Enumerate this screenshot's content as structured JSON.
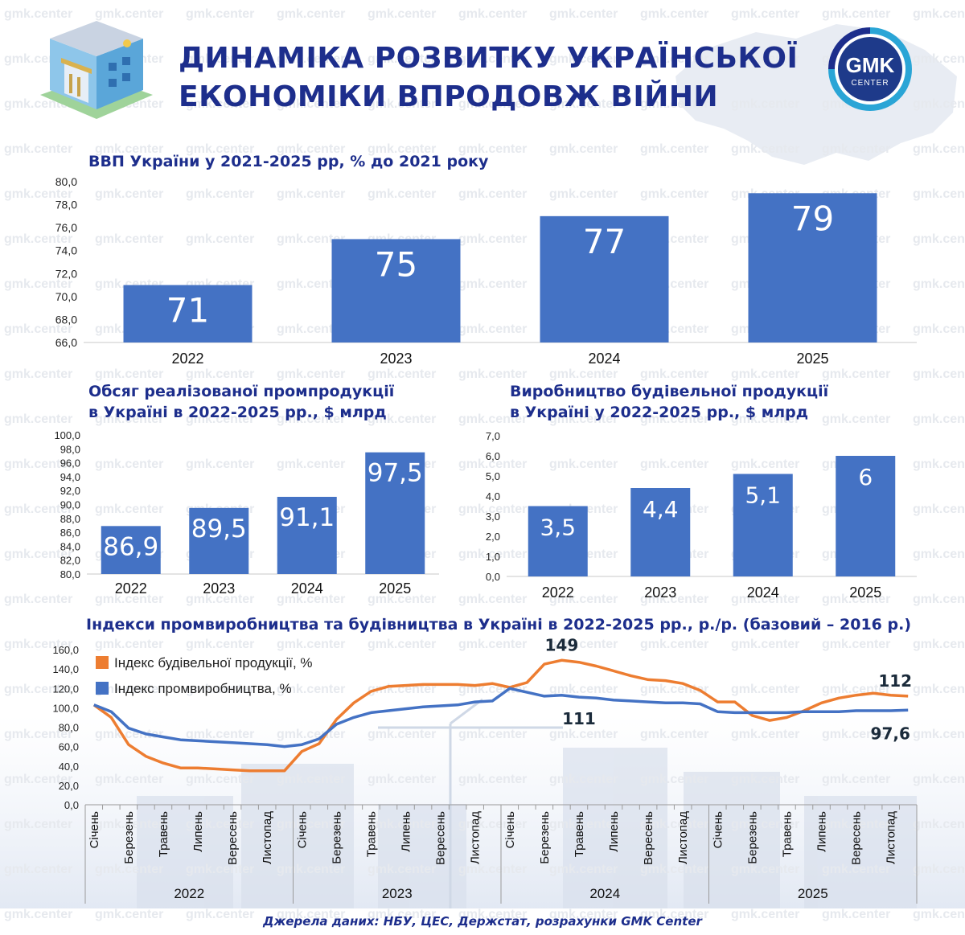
{
  "header": {
    "title_line1": "ДИНАМІКА РОЗВИТКУ УКРАЇНСЬКОЇ",
    "title_line2": "ЕКОНОМІКИ ВПРОДОВЖ ВІЙНИ",
    "logo_top": "GMK",
    "logo_bottom": "CENTER",
    "watermark": "gmk.center"
  },
  "colors": {
    "title": "#1d2e8c",
    "bar": "#4472c4",
    "orange": "#ed7d31",
    "logo_ring": "#2aa5d6"
  },
  "chart_data": [
    {
      "type": "bar",
      "title": "ВВП України у 2021-2025 рр, % до 2021 року",
      "categories": [
        "2022",
        "2023",
        "2024",
        "2025"
      ],
      "values": [
        71,
        75,
        77,
        79
      ],
      "value_labels": [
        "71",
        "75",
        "77",
        "79"
      ],
      "yticks": [
        "80,0",
        "78,0",
        "76,0",
        "74,0",
        "72,0",
        "70,0",
        "68,0",
        "66,0"
      ],
      "ylim": [
        66,
        80
      ],
      "grid": false
    },
    {
      "type": "bar",
      "title_line1": "Обсяг реалізованої промпродукції",
      "title_line2": "в Україні в 2022-2025 рр., $ млрд",
      "categories": [
        "2022",
        "2023",
        "2024",
        "2025"
      ],
      "values": [
        86.9,
        89.5,
        91.1,
        97.5
      ],
      "value_labels": [
        "86,9",
        "89,5",
        "91,1",
        "97,5"
      ],
      "yticks": [
        "100,0",
        "98,0",
        "96,0",
        "94,0",
        "92,0",
        "90,0",
        "88,0",
        "86,0",
        "84,0",
        "82,0",
        "80,0"
      ],
      "ylim": [
        80,
        100
      ],
      "grid": false
    },
    {
      "type": "bar",
      "title_line1": "Виробництво будівельної продукції",
      "title_line2": "в Україні у 2022-2025 рр., $ млрд",
      "categories": [
        "2022",
        "2023",
        "2024",
        "2025"
      ],
      "values": [
        3.5,
        4.4,
        5.1,
        6
      ],
      "value_labels": [
        "3,5",
        "4,4",
        "5,1",
        "6"
      ],
      "yticks": [
        "7,0",
        "6,0",
        "5,0",
        "4,0",
        "3,0",
        "2,0",
        "1,0",
        "0,0"
      ],
      "ylim": [
        0,
        7
      ],
      "grid": false
    },
    {
      "type": "line",
      "title": "Індекси промвиробництва та будівництва в Україні в 2022-2025 рр., р./р. (базовий – 2016 р.)",
      "yticks": [
        "160,0",
        "140,0",
        "120,0",
        "100,0",
        "80,0",
        "60,0",
        "40,0",
        "20,0",
        "0,0"
      ],
      "ylim": [
        0,
        160
      ],
      "month_labels": [
        "Січень",
        "Березень",
        "Травень",
        "Липень",
        "Вересень",
        "Листопад"
      ],
      "years": [
        "2022",
        "2023",
        "2024",
        "2025"
      ],
      "legend_position": "top-left",
      "series": [
        {
          "name": "Індекс будівельної продукції, %",
          "color": "#ed7d31",
          "values": [
            103,
            90,
            62,
            50,
            43,
            38,
            38,
            37,
            36,
            35,
            35,
            35,
            55,
            63,
            88,
            105,
            117,
            122,
            123,
            124,
            124,
            124,
            123,
            125,
            121,
            126,
            145,
            149,
            147,
            143,
            138,
            133,
            129,
            128,
            125,
            118,
            106,
            106,
            92,
            87,
            90,
            97,
            105,
            110,
            113,
            115,
            113,
            112
          ]
        },
        {
          "name": "Індекс промвиробництва, %",
          "color": "#4472c4",
          "values": [
            103,
            96,
            79,
            73,
            70,
            67,
            66,
            65,
            64,
            63,
            62,
            60,
            62,
            68,
            83,
            90,
            95,
            97,
            99,
            101,
            102,
            103,
            106,
            107,
            120,
            116,
            112,
            113,
            111,
            110,
            108,
            107,
            106,
            105,
            105,
            104,
            96,
            95,
            95,
            95,
            95,
            96,
            96,
            96,
            97,
            97,
            97,
            97.6
          ]
        }
      ],
      "annotations": [
        {
          "text": "149",
          "index": 27,
          "series": 0
        },
        {
          "text": "111",
          "index": 28,
          "series": 1
        },
        {
          "text": "112",
          "index": 47,
          "series": 0
        },
        {
          "text": "97,6",
          "index": 47,
          "series": 1
        }
      ]
    }
  ],
  "footer": {
    "source": "Джерела даних: НБУ, ЦЕС, Держстат, розрахунки GMK Center"
  }
}
